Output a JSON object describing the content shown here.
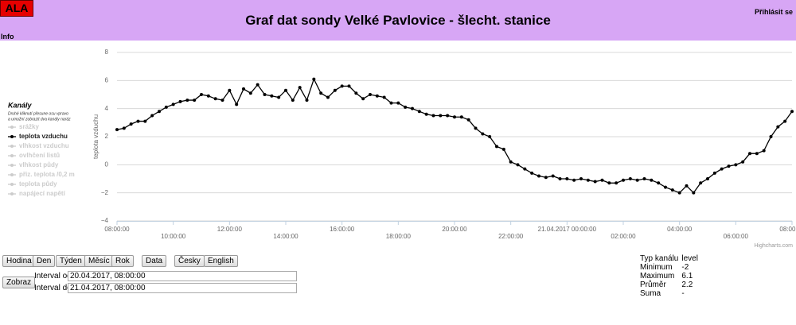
{
  "header": {
    "logo": "ALA",
    "title": "Graf dat sondy Velké Pavlovice - šlecht. stanice",
    "login": "Přihlásit se",
    "info": "Info"
  },
  "sidebar": {
    "title": "Kanály",
    "note": [
      "Druhé kliknutí přesune osu vpravo",
      "a umožní zobrazit dva kanály naráz"
    ],
    "channels": [
      "srážky",
      "teplota vzduchu",
      "vlhkost vzduchu",
      "ovlhčení listů",
      "vlhkost půdy",
      "přiz. teplota /0,2 m",
      "teplota půdy",
      "napájecí napětí"
    ],
    "active": 1
  },
  "chart_data": {
    "type": "line",
    "y_label": "teplota vzduchu",
    "color": "#000000",
    "grid": true,
    "credits": "Highcharts.com",
    "x": [
      "2017-04-20T08:00",
      "2017-04-20T08:15",
      "2017-04-20T08:30",
      "2017-04-20T08:45",
      "2017-04-20T09:00",
      "2017-04-20T09:15",
      "2017-04-20T09:30",
      "2017-04-20T09:45",
      "2017-04-20T10:00",
      "2017-04-20T10:15",
      "2017-04-20T10:30",
      "2017-04-20T10:45",
      "2017-04-20T11:00",
      "2017-04-20T11:15",
      "2017-04-20T11:30",
      "2017-04-20T11:45",
      "2017-04-20T12:00",
      "2017-04-20T12:15",
      "2017-04-20T12:30",
      "2017-04-20T12:45",
      "2017-04-20T13:00",
      "2017-04-20T13:15",
      "2017-04-20T13:30",
      "2017-04-20T13:45",
      "2017-04-20T14:00",
      "2017-04-20T14:15",
      "2017-04-20T14:30",
      "2017-04-20T14:45",
      "2017-04-20T15:00",
      "2017-04-20T15:15",
      "2017-04-20T15:30",
      "2017-04-20T15:45",
      "2017-04-20T16:00",
      "2017-04-20T16:15",
      "2017-04-20T16:30",
      "2017-04-20T16:45",
      "2017-04-20T17:00",
      "2017-04-20T17:15",
      "2017-04-20T17:30",
      "2017-04-20T17:45",
      "2017-04-20T18:00",
      "2017-04-20T18:15",
      "2017-04-20T18:30",
      "2017-04-20T18:45",
      "2017-04-20T19:00",
      "2017-04-20T19:15",
      "2017-04-20T19:30",
      "2017-04-20T19:45",
      "2017-04-20T20:00",
      "2017-04-20T20:15",
      "2017-04-20T20:30",
      "2017-04-20T20:45",
      "2017-04-20T21:00",
      "2017-04-20T21:15",
      "2017-04-20T21:30",
      "2017-04-20T21:45",
      "2017-04-20T22:00",
      "2017-04-20T22:15",
      "2017-04-20T22:30",
      "2017-04-20T22:45",
      "2017-04-20T23:00",
      "2017-04-20T23:15",
      "2017-04-20T23:30",
      "2017-04-20T23:45",
      "2017-04-21T00:00",
      "2017-04-21T00:15",
      "2017-04-21T00:30",
      "2017-04-21T00:45",
      "2017-04-21T01:00",
      "2017-04-21T01:15",
      "2017-04-21T01:30",
      "2017-04-21T01:45",
      "2017-04-21T02:00",
      "2017-04-21T02:15",
      "2017-04-21T02:30",
      "2017-04-21T02:45",
      "2017-04-21T03:00",
      "2017-04-21T03:15",
      "2017-04-21T03:30",
      "2017-04-21T03:45",
      "2017-04-21T04:00",
      "2017-04-21T04:15",
      "2017-04-21T04:30",
      "2017-04-21T04:45",
      "2017-04-21T05:00",
      "2017-04-21T05:15",
      "2017-04-21T05:30",
      "2017-04-21T05:45",
      "2017-04-21T06:00",
      "2017-04-21T06:15",
      "2017-04-21T06:30",
      "2017-04-21T06:45",
      "2017-04-21T07:00",
      "2017-04-21T07:15",
      "2017-04-21T07:30",
      "2017-04-21T07:45",
      "2017-04-21T08:00"
    ],
    "values": [
      2.5,
      2.6,
      2.9,
      3.1,
      3.1,
      3.5,
      3.8,
      4.1,
      4.3,
      4.5,
      4.6,
      4.6,
      5.0,
      4.9,
      4.7,
      4.6,
      5.3,
      4.3,
      5.4,
      5.1,
      5.7,
      5.0,
      4.9,
      4.8,
      5.3,
      4.6,
      5.5,
      4.6,
      6.1,
      5.1,
      4.8,
      5.3,
      5.6,
      5.6,
      5.1,
      4.7,
      5.0,
      4.9,
      4.8,
      4.4,
      4.4,
      4.1,
      4.0,
      3.8,
      3.6,
      3.5,
      3.5,
      3.5,
      3.4,
      3.4,
      3.2,
      2.6,
      2.2,
      2.0,
      1.3,
      1.1,
      0.2,
      0.0,
      -0.3,
      -0.6,
      -0.8,
      -0.9,
      -0.8,
      -1.0,
      -1.0,
      -1.1,
      -1.0,
      -1.1,
      -1.2,
      -1.1,
      -1.3,
      -1.3,
      -1.1,
      -1.0,
      -1.1,
      -1.0,
      -1.1,
      -1.3,
      -1.6,
      -1.8,
      -2.0,
      -1.5,
      -2.0,
      -1.3,
      -1.0,
      -0.6,
      -0.3,
      -0.1,
      0.0,
      0.2,
      0.8,
      0.8,
      1.0,
      2.0,
      2.7,
      3.1,
      3.8
    ],
    "xlim": [
      "2017-04-20T08:00",
      "2017-04-21T08:00"
    ],
    "xticks": [
      {
        "value": "2017-04-20T08:00",
        "label": "08:00:00"
      },
      {
        "value": "2017-04-20T10:00",
        "label": "10:00:00"
      },
      {
        "value": "2017-04-20T12:00",
        "label": "12:00:00"
      },
      {
        "value": "2017-04-20T14:00",
        "label": "14:00:00"
      },
      {
        "value": "2017-04-20T16:00",
        "label": "16:00:00"
      },
      {
        "value": "2017-04-20T18:00",
        "label": "18:00:00"
      },
      {
        "value": "2017-04-20T20:00",
        "label": "20:00:00"
      },
      {
        "value": "2017-04-20T22:00",
        "label": "22:00:00"
      },
      {
        "value": "2017-04-21T00:00",
        "label": "21.04.2017 00:00:00"
      },
      {
        "value": "2017-04-21T02:00",
        "label": "02:00:00"
      },
      {
        "value": "2017-04-21T04:00",
        "label": "04:00:00"
      },
      {
        "value": "2017-04-21T06:00",
        "label": "06:00:00"
      },
      {
        "value": "2017-04-21T08:00",
        "label": "08:00:00"
      }
    ],
    "ylim": [
      -4,
      8
    ],
    "yticks": [
      {
        "value": -4,
        "label": "−4"
      },
      {
        "value": -2,
        "label": "−2"
      },
      0,
      2,
      4,
      6,
      8
    ]
  },
  "controls": {
    "buttons": [
      "Hodina",
      "Den",
      "Týden",
      "Měsíc",
      "Rok",
      "Data",
      "Česky",
      "English"
    ],
    "show": "Zobraz",
    "from_label": "Interval od",
    "from_value": "20.04.2017, 08:00:00",
    "to_label": "Interval do",
    "to_value": "21.04.2017, 08:00:00"
  },
  "stats": [
    [
      "Typ kanálu",
      "level"
    ],
    [
      "Minimum",
      "-2"
    ],
    [
      "Maximum",
      "6.1"
    ],
    [
      "Průměr",
      "2.2"
    ],
    [
      "Suma",
      "-"
    ]
  ]
}
